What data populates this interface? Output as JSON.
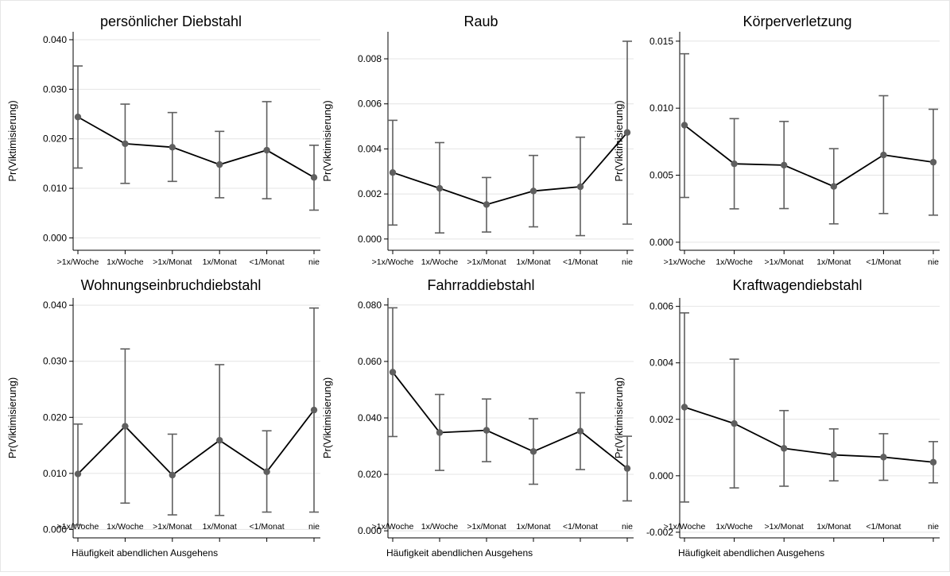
{
  "figure": {
    "xlabel": "Häufigkeit abendlichen Ausgehens"
  },
  "chart_data": [
    {
      "type": "line",
      "title": "persönlicher Diebstahl",
      "ylabel": "Pr(Viktimisierung)",
      "categories": [
        ">1x/Woche",
        "1x/Woche",
        ">1x/Monat",
        "1x/Monat",
        "<1/Monat",
        "nie"
      ],
      "values": [
        0.0244,
        0.019,
        0.0183,
        0.0148,
        0.0177,
        0.0122
      ],
      "ci_low": [
        0.0141,
        0.011,
        0.0114,
        0.0081,
        0.0079,
        0.0056
      ],
      "ci_high": [
        0.0347,
        0.027,
        0.0253,
        0.0215,
        0.0275,
        0.0187
      ],
      "ylim": [
        -0.0025,
        0.0416
      ],
      "yticks": [
        0.0,
        0.01,
        0.02,
        0.03,
        0.04
      ],
      "yticklabels": [
        "0.000",
        "0.010",
        "0.020",
        "0.030",
        "0.040"
      ],
      "grid": true
    },
    {
      "type": "line",
      "title": "Raub",
      "ylabel": "Pr(Viktimisierung)",
      "categories": [
        ">1x/Woche",
        "1x/Woche",
        ">1x/Monat",
        "1x/Monat",
        "<1/Monat",
        "nie"
      ],
      "values": [
        0.00295,
        0.00225,
        0.00153,
        0.00213,
        0.00232,
        0.00473
      ],
      "ci_low": [
        0.00062,
        0.00027,
        0.00031,
        0.00054,
        0.00015,
        0.00066
      ],
      "ci_high": [
        0.00527,
        0.00428,
        0.00273,
        0.00371,
        0.00452,
        0.00878
      ],
      "ylim": [
        -0.0005,
        0.0092
      ],
      "yticks": [
        0.0,
        0.002,
        0.004,
        0.006,
        0.008
      ],
      "yticklabels": [
        "0.000",
        "0.002",
        "0.004",
        "0.006",
        "0.008"
      ],
      "grid": true
    },
    {
      "type": "line",
      "title": "Körperverletzung",
      "ylabel": "Pr(Viktimisierung)",
      "categories": [
        ">1x/Woche",
        "1x/Woche",
        ">1x/Monat",
        "1x/Monat",
        "<1/Monat",
        "nie"
      ],
      "values": [
        0.00873,
        0.00585,
        0.00575,
        0.00416,
        0.00651,
        0.00597
      ],
      "ci_low": [
        0.00334,
        0.00249,
        0.00251,
        0.00137,
        0.00214,
        0.00202
      ],
      "ci_high": [
        0.01406,
        0.00922,
        0.00901,
        0.00698,
        0.01093,
        0.00992
      ],
      "ylim": [
        -0.0006,
        0.0157
      ],
      "yticks": [
        0.0,
        0.005,
        0.01,
        0.015
      ],
      "yticklabels": [
        "0.000",
        "0.005",
        "0.010",
        "0.015"
      ],
      "grid": true
    },
    {
      "type": "line",
      "title": "Wohnungseinbruchdiebstahl",
      "ylabel": "Pr(Viktimisierung)",
      "categories": [
        ">1x/Woche",
        "1x/Woche",
        ">1x/Monat",
        "1x/Monat",
        "<1/Monat",
        "nie"
      ],
      "values": [
        0.0099,
        0.0184,
        0.0097,
        0.0159,
        0.0103,
        0.0213
      ],
      "ci_low": [
        0.0008,
        0.0047,
        0.0026,
        0.0025,
        0.0031,
        0.0031
      ],
      "ci_high": [
        0.0188,
        0.0322,
        0.017,
        0.0294,
        0.0176,
        0.0395
      ],
      "ylim": [
        -0.0015,
        0.0413
      ],
      "yticks": [
        0.0,
        0.01,
        0.02,
        0.03,
        0.04
      ],
      "yticklabels": [
        "0.000",
        "0.010",
        "0.020",
        "0.030",
        "0.040"
      ],
      "grid": true
    },
    {
      "type": "line",
      "title": "Fahrraddiebstahl",
      "ylabel": "Pr(Viktimisierung)",
      "categories": [
        ">1x/Woche",
        "1x/Woche",
        ">1x/Monat",
        "1x/Monat",
        "<1/Monat",
        "nie"
      ],
      "values": [
        0.0562,
        0.0348,
        0.0356,
        0.0281,
        0.0353,
        0.0221
      ],
      "ci_low": [
        0.0334,
        0.0214,
        0.0245,
        0.0165,
        0.0217,
        0.0106
      ],
      "ci_high": [
        0.079,
        0.0483,
        0.0467,
        0.0397,
        0.0489,
        0.0335
      ],
      "ylim": [
        -0.0025,
        0.0825
      ],
      "yticks": [
        0.0,
        0.02,
        0.04,
        0.06,
        0.08
      ],
      "yticklabels": [
        "0.000",
        "0.020",
        "0.040",
        "0.060",
        "0.080"
      ],
      "grid": true
    },
    {
      "type": "line",
      "title": "Kraftwagendiebstahl",
      "ylabel": "Pr(Viktimisierung)",
      "categories": [
        ">1x/Woche",
        "1x/Woche",
        ">1x/Monat",
        "1x/Monat",
        "<1/Monat",
        "nie"
      ],
      "values": [
        0.00243,
        0.00185,
        0.00097,
        0.00074,
        0.00066,
        0.00048
      ],
      "ci_low": [
        -0.00093,
        -0.00043,
        -0.00037,
        -0.00018,
        -0.00016,
        -0.00025
      ],
      "ci_high": [
        0.00577,
        0.00413,
        0.00231,
        0.00166,
        0.00149,
        0.00121
      ],
      "ylim": [
        -0.0022,
        0.0063
      ],
      "yticks": [
        -0.002,
        0.0,
        0.002,
        0.004,
        0.006
      ],
      "yticklabels": [
        "-0.002",
        "0.000",
        "0.002",
        "0.004",
        "0.006"
      ],
      "grid": true
    }
  ]
}
